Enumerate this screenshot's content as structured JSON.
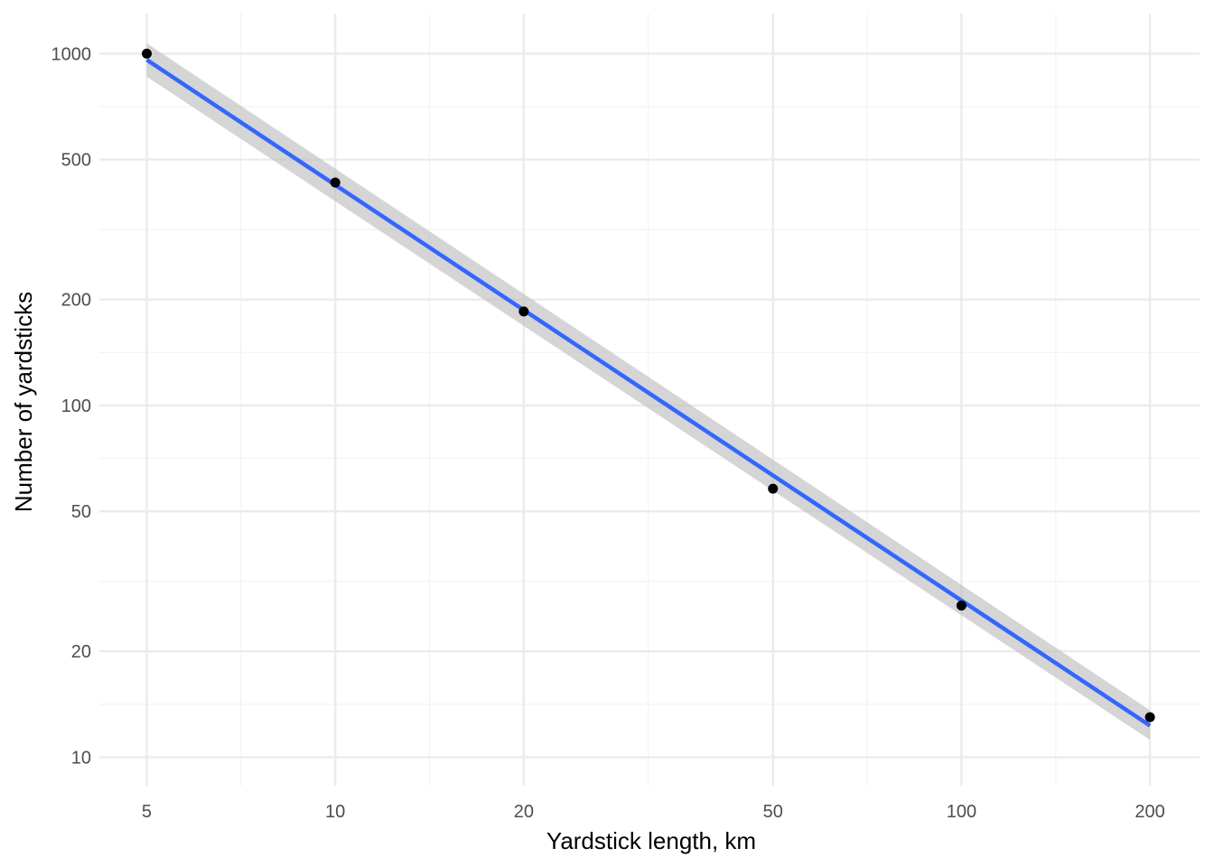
{
  "chart_data": {
    "type": "scatter",
    "title": "",
    "xlabel": "Yardstick length, km",
    "ylabel": "Number of yardsticks",
    "x_scale": "log10",
    "y_scale": "log10",
    "xlim": [
      4.2,
      240
    ],
    "ylim": [
      8.3,
      1300
    ],
    "grid": true,
    "legend": "none",
    "x_ticks": [
      5,
      10,
      20,
      50,
      100,
      200
    ],
    "x_tick_labels": [
      "5",
      "10",
      "20",
      "50",
      "100",
      "200"
    ],
    "x_minor_ticks": [
      7.07,
      14.14,
      31.62,
      70.71,
      141.42
    ],
    "y_ticks": [
      10,
      20,
      50,
      100,
      200,
      500,
      1000
    ],
    "y_tick_labels": [
      "10",
      "20",
      "50",
      "100",
      "200",
      "500",
      "1000"
    ],
    "y_minor_ticks": [
      14.14,
      31.62,
      70.71,
      141.42,
      316.23,
      707.11
    ],
    "points": {
      "x": [
        5,
        10,
        20,
        50,
        100,
        200
      ],
      "y": [
        1000,
        430,
        185,
        58,
        27,
        13
      ]
    },
    "fit": {
      "method": "lm",
      "x": [
        5,
        200
      ],
      "y": [
        960,
        12.3
      ],
      "ci_lower": [
        860,
        11.2
      ],
      "ci_upper": [
        1070,
        13.6
      ]
    },
    "colors": {
      "points": "#000000",
      "fit_line": "#3366FF",
      "ribbon": "#bfbfbf",
      "grid_major": "#ebebeb",
      "grid_minor": "#f2f2f2"
    }
  }
}
